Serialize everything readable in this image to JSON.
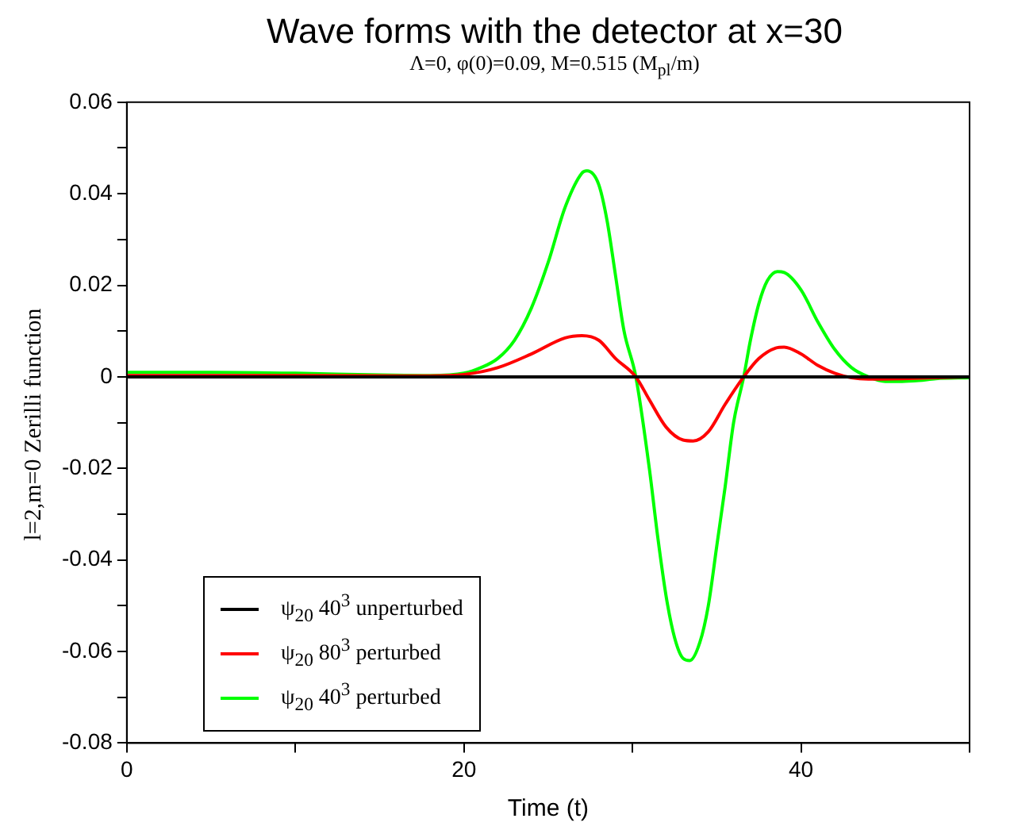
{
  "chart_data": {
    "type": "line",
    "title": "Wave forms with the detector at x=30",
    "subtitle": "Λ=0, φ(0)=0.09,  M=0.515 (M$_{pl}$/m)",
    "xlabel": "Time (t)",
    "ylabel": "l=2,m=0  Zerilli function",
    "xlim": [
      0,
      50
    ],
    "ylim": [
      -0.08,
      0.06
    ],
    "xticks": [
      0,
      {
        "value": 10,
        "label": null
      },
      20,
      {
        "value": 30,
        "label": null
      },
      40,
      {
        "value": 50,
        "label": null
      }
    ],
    "yticks": [
      -0.08,
      {
        "value": -0.07,
        "label": null
      },
      -0.06,
      {
        "value": -0.05,
        "label": null
      },
      -0.04,
      {
        "value": -0.03,
        "label": null
      },
      -0.02,
      {
        "value": -0.01,
        "label": null
      },
      0,
      {
        "value": 0.01,
        "label": null
      },
      0.02,
      {
        "value": 0.03,
        "label": null
      },
      0.04,
      {
        "value": 0.05,
        "label": null
      },
      0.06
    ],
    "grid": false,
    "legend": "bottom left",
    "marker": "none",
    "line_style": "solid",
    "series": [
      {
        "name": "ψ$_{20}$ 40$^{3}$ unperturbed",
        "color": "#000000",
        "x": [
          0,
          50
        ],
        "values": [
          0,
          0
        ]
      },
      {
        "name": "ψ$_{20}$ 80$^{3}$ perturbed",
        "color": "#ff0000",
        "x": [
          0,
          10,
          18,
          20,
          22,
          24,
          26,
          27,
          28,
          29,
          30.2,
          31,
          32,
          33,
          33.6,
          34.5,
          35.5,
          36.6,
          37.5,
          38.5,
          39,
          40,
          41,
          42,
          43,
          44,
          46,
          48,
          50
        ],
        "values": [
          0.0003,
          0.0003,
          0.0002,
          0.0005,
          0.002,
          0.005,
          0.0085,
          0.009,
          0.008,
          0.004,
          0,
          -0.005,
          -0.011,
          -0.0138,
          -0.014,
          -0.012,
          -0.006,
          0,
          0.004,
          0.0063,
          0.0065,
          0.005,
          0.0025,
          0.0008,
          -0.0002,
          -0.0005,
          -0.0004,
          -0.0002,
          0
        ]
      },
      {
        "name": "ψ$_{20}$ 40$^{3}$ perturbed",
        "color": "#00ff00",
        "x": [
          0,
          5,
          10,
          15,
          18,
          20,
          21,
          22,
          23,
          24,
          25,
          26,
          27,
          27.3,
          28,
          28.5,
          29,
          29.5,
          30.2,
          31,
          31.5,
          32,
          32.5,
          33,
          33.4,
          34,
          34.5,
          35,
          35.5,
          36,
          36.6,
          37,
          37.5,
          38,
          38.6,
          39,
          40,
          41,
          42,
          43,
          44,
          45,
          46,
          47,
          48,
          50
        ],
        "values": [
          0.001,
          0.001,
          0.0008,
          0.0004,
          0.0003,
          0.0008,
          0.002,
          0.004,
          0.008,
          0.015,
          0.025,
          0.037,
          0.0445,
          0.045,
          0.042,
          0.034,
          0.022,
          0.01,
          0,
          -0.02,
          -0.035,
          -0.048,
          -0.057,
          -0.0615,
          -0.062,
          -0.058,
          -0.05,
          -0.037,
          -0.024,
          -0.01,
          0,
          0.008,
          0.016,
          0.021,
          0.023,
          0.0228,
          0.019,
          0.012,
          0.006,
          0.002,
          0,
          -0.001,
          -0.001,
          -0.0008,
          -0.0004,
          -0.0002
        ]
      }
    ]
  }
}
